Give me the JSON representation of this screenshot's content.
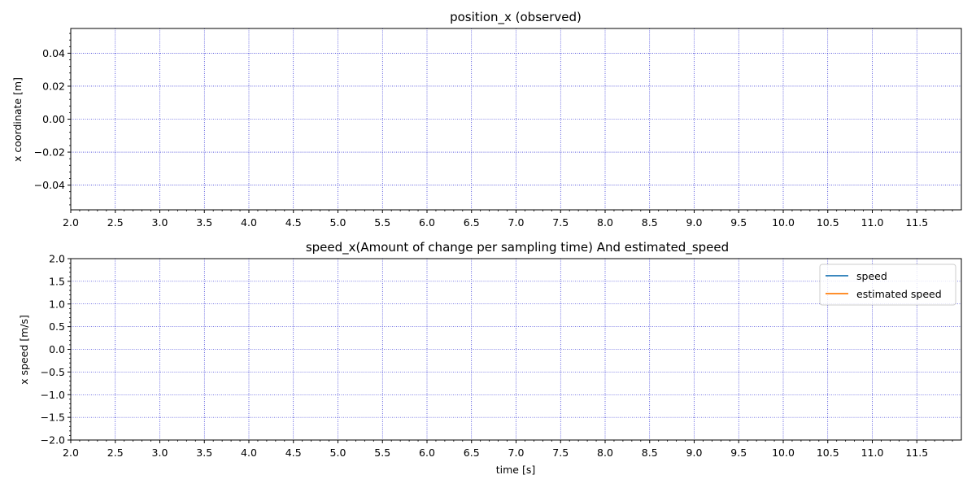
{
  "colors": {
    "grid": "#0000cc",
    "speed": "#1f77b4",
    "estimated_speed": "#ff7f0e",
    "axis": "#000000"
  },
  "chart_data": [
    {
      "type": "line",
      "title": "position_x (observed)",
      "xlabel": "",
      "ylabel": "x coordinate [m]",
      "xlim": [
        2.0,
        12.0
      ],
      "ylim": [
        -0.055,
        0.055
      ],
      "xticks": [
        2.0,
        2.5,
        3.0,
        3.5,
        4.0,
        4.5,
        5.0,
        5.5,
        6.0,
        6.5,
        7.0,
        7.5,
        8.0,
        8.5,
        9.0,
        9.5,
        10.0,
        10.5,
        11.0,
        11.5
      ],
      "xticklabels": [
        "2.0",
        "2.5",
        "3.0",
        "3.5",
        "4.0",
        "4.5",
        "5.0",
        "5.5",
        "6.0",
        "6.5",
        "7.0",
        "7.5",
        "8.0",
        "8.5",
        "9.0",
        "9.5",
        "10.0",
        "10.5",
        "11.0",
        "11.5"
      ],
      "yticks": [
        0.04,
        0.02,
        0.0,
        -0.02,
        -0.04
      ],
      "yticklabels": [
        "0.04",
        "0.02",
        "0.00",
        "−0.02",
        "−0.04"
      ],
      "grid": true,
      "series": []
    },
    {
      "type": "line",
      "title": "speed_x(Amount of change per sampling time) And estimated_speed",
      "xlabel": "time [s]",
      "ylabel": "x speed [m/s]",
      "xlim": [
        2.0,
        12.0
      ],
      "ylim": [
        -2.0,
        2.0
      ],
      "xticks": [
        2.0,
        2.5,
        3.0,
        3.5,
        4.0,
        4.5,
        5.0,
        5.5,
        6.0,
        6.5,
        7.0,
        7.5,
        8.0,
        8.5,
        9.0,
        9.5,
        10.0,
        10.5,
        11.0,
        11.5
      ],
      "xticklabels": [
        "2.0",
        "2.5",
        "3.0",
        "3.5",
        "4.0",
        "4.5",
        "5.0",
        "5.5",
        "6.0",
        "6.5",
        "7.0",
        "7.5",
        "8.0",
        "8.5",
        "9.0",
        "9.5",
        "10.0",
        "10.5",
        "11.0",
        "11.5"
      ],
      "yticks": [
        2.0,
        1.5,
        1.0,
        0.5,
        0.0,
        -0.5,
        -1.0,
        -1.5,
        -2.0
      ],
      "yticklabels": [
        "2.0",
        "1.5",
        "1.0",
        "0.5",
        "0.0",
        "−0.5",
        "−1.0",
        "−1.5",
        "−2.0"
      ],
      "grid": true,
      "legend": "top-right",
      "series": [
        {
          "name": "speed",
          "color": "#1f77b4",
          "x": [],
          "y": []
        },
        {
          "name": "estimated speed",
          "color": "#ff7f0e",
          "x": [],
          "y": []
        }
      ]
    }
  ]
}
